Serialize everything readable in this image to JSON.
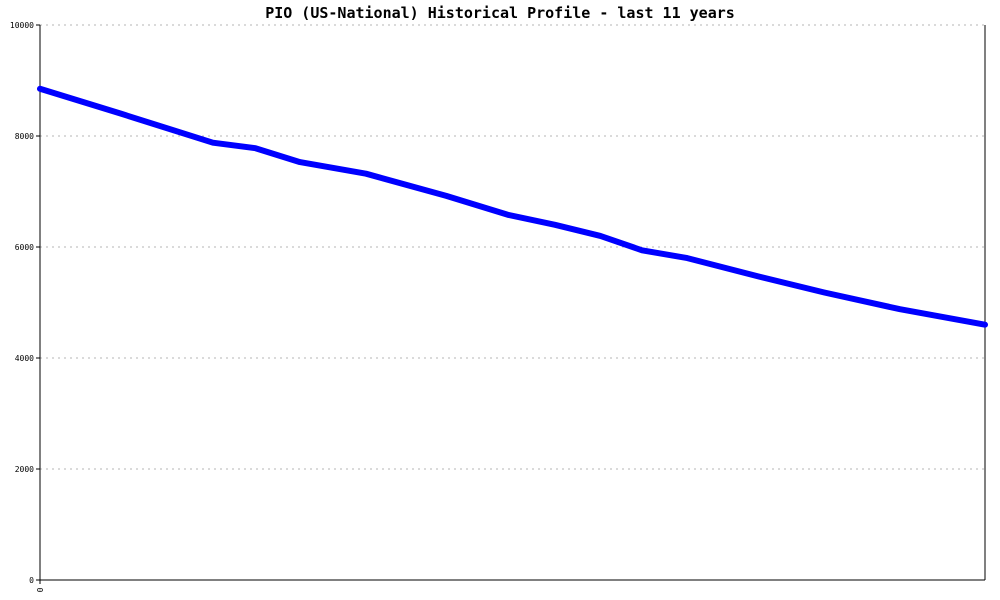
{
  "chart_data": {
    "type": "line",
    "title": "PIO (US-National) Historical Profile - last 11 years",
    "xlabel": "",
    "ylabel": "",
    "x_tick_labels": [
      "0"
    ],
    "y_ticks": [
      0,
      2000,
      4000,
      6000,
      8000,
      10000
    ],
    "y_tick_labels": [
      "0",
      "2000",
      "4000",
      "6000",
      "8000",
      "10000"
    ],
    "ylim": [
      0,
      10000
    ],
    "xlim": [
      0,
      1
    ],
    "grid": true,
    "series": [
      {
        "color": "#0000ff",
        "points": [
          [
            0.0,
            8850
          ],
          [
            0.086,
            8400
          ],
          [
            0.183,
            7880
          ],
          [
            0.228,
            7780
          ],
          [
            0.275,
            7530
          ],
          [
            0.345,
            7320
          ],
          [
            0.43,
            6920
          ],
          [
            0.495,
            6580
          ],
          [
            0.545,
            6400
          ],
          [
            0.593,
            6200
          ],
          [
            0.637,
            5940
          ],
          [
            0.685,
            5800
          ],
          [
            0.76,
            5470
          ],
          [
            0.83,
            5180
          ],
          [
            0.91,
            4880
          ],
          [
            1.0,
            4600
          ]
        ]
      }
    ]
  },
  "colors": {
    "series": "#0000ff",
    "grid": "#b4b4b4",
    "axis": "#000000"
  }
}
